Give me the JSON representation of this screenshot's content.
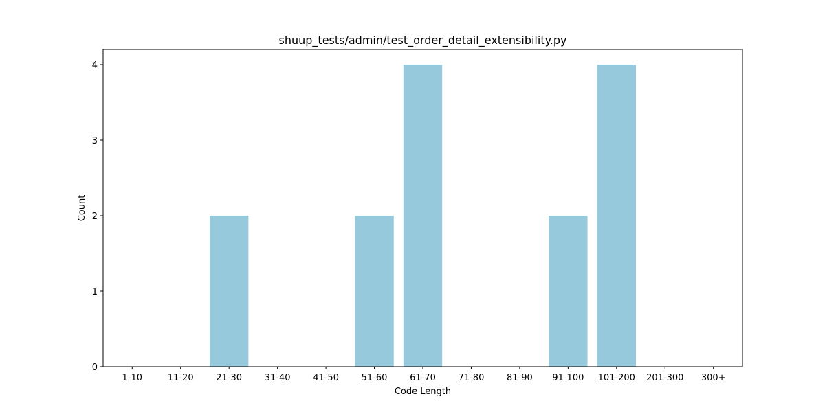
{
  "chart_data": {
    "type": "bar",
    "title": "shuup_tests/admin/test_order_detail_extensibility.py",
    "xlabel": "Code Length",
    "ylabel": "Count",
    "categories": [
      "1-10",
      "11-20",
      "21-30",
      "31-40",
      "41-50",
      "51-60",
      "61-70",
      "71-80",
      "81-90",
      "91-100",
      "101-200",
      "201-300",
      "300+"
    ],
    "values": [
      0,
      0,
      2,
      0,
      0,
      2,
      4,
      0,
      0,
      2,
      4,
      0,
      0
    ],
    "ylim": [
      0,
      4.2
    ],
    "yticks": [
      "0",
      "1",
      "2",
      "3",
      "4"
    ],
    "grid": false,
    "legend": "none",
    "bar_color": "#96c9dc"
  }
}
